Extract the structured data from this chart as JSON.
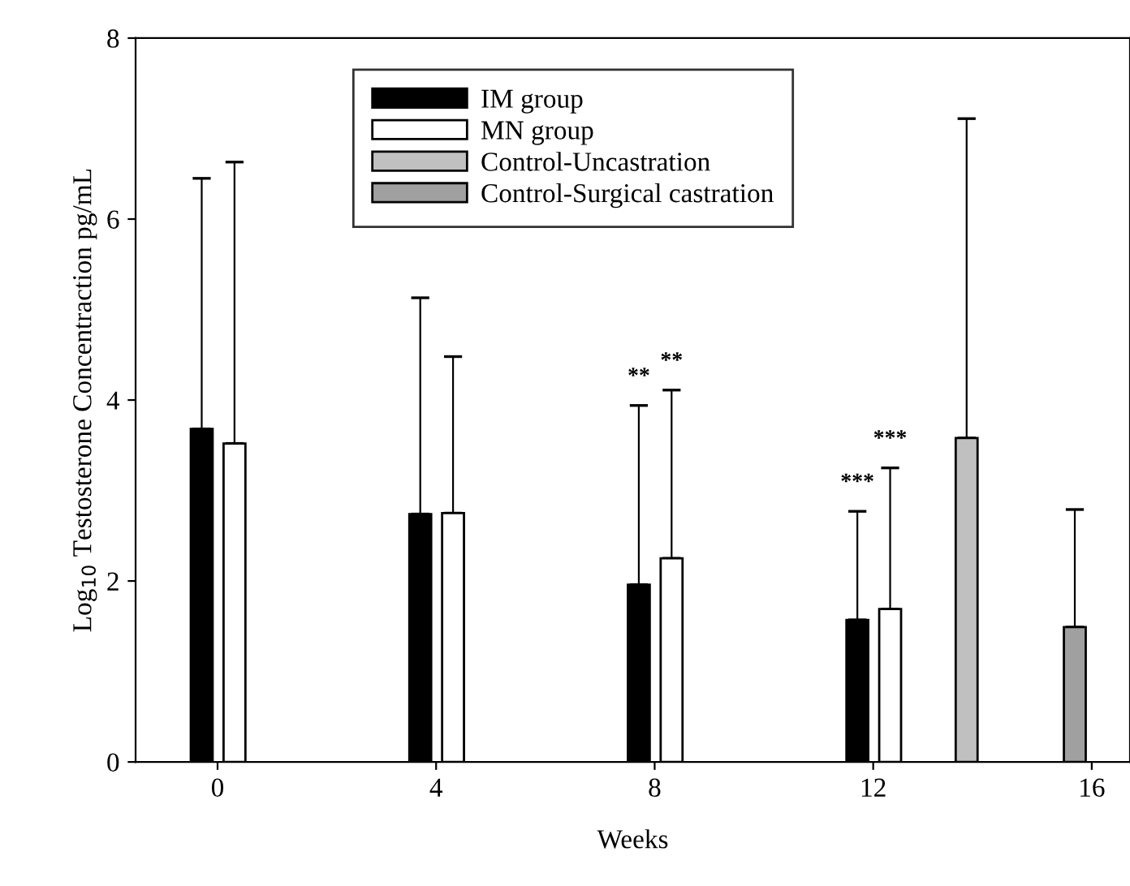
{
  "chart_data": {
    "type": "bar",
    "xlabel": "Weeks",
    "ylabel": "Log$_{10}$ Testosterone Concentraction pg/mL",
    "xlim": [
      -1.5,
      16.7
    ],
    "xticks": [
      0,
      4,
      8,
      12,
      16
    ],
    "ylim": [
      0,
      8
    ],
    "yticks": [
      0,
      2,
      4,
      6,
      8
    ],
    "grid": false,
    "legend": "top",
    "series": [
      {
        "name": "IM group",
        "color": "#000000",
        "x": [
          -0.29,
          3.71,
          7.71,
          11.71
        ],
        "values": [
          3.68,
          2.74,
          1.96,
          1.57
        ],
        "errors": [
          [
            3.68,
            6.45
          ],
          [
            2.74,
            5.13
          ],
          [
            1.96,
            3.94
          ],
          [
            1.57,
            2.77
          ]
        ]
      },
      {
        "name": "MN group",
        "color": "#ffffff",
        "x": [
          0.31,
          4.31,
          8.31,
          12.31
        ],
        "values": [
          3.52,
          2.75,
          2.25,
          1.69
        ],
        "errors": [
          [
            3.52,
            6.63
          ],
          [
            2.75,
            4.48
          ],
          [
            2.25,
            4.11
          ],
          [
            1.69,
            3.25
          ]
        ]
      },
      {
        "name": "Control-Uncastration",
        "color": "#c0c0c0",
        "x": [
          13.71
        ],
        "values": [
          3.58
        ],
        "errors": [
          [
            3.58,
            7.11
          ]
        ]
      },
      {
        "name": "Control-Surgical castration",
        "color": "#a0a0a0",
        "x": [
          15.69
        ],
        "values": [
          1.49
        ],
        "errors": [
          [
            1.49,
            2.79
          ]
        ]
      }
    ],
    "annotations": [
      {
        "text": "**",
        "x": 7.71,
        "y": 3.94
      },
      {
        "text": "**",
        "x": 8.31,
        "y": 4.11
      },
      {
        "text": "***",
        "x": 11.71,
        "y": 2.77
      },
      {
        "text": "***",
        "x": 12.31,
        "y": 3.25
      }
    ]
  }
}
